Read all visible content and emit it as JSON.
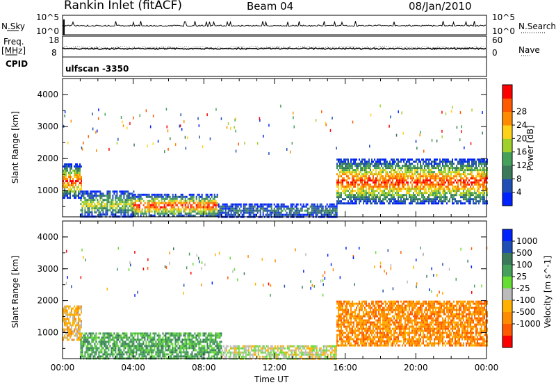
{
  "header": {
    "title": "Rankin Inlet (fitACF)",
    "beam": "Beam 04",
    "date": "08/Jan/2010"
  },
  "side_labels": {
    "nsky": "N.Sky",
    "freq_line1": "Freq.",
    "freq_line2": "[MHz]",
    "cpid": "CPID",
    "nsearch": "N.Search",
    "nave": "Nave"
  },
  "nsky_axis": {
    "top": "10^5",
    "bottom": "10^0"
  },
  "nsearch_axis": {
    "top": "10^5",
    "bottom": "10^0"
  },
  "freq_axis": {
    "top": "18",
    "bottom": "8"
  },
  "nave_axis": {
    "top": "60",
    "bottom": "0"
  },
  "cpid_text": "ulfscan  -3350",
  "colors": {
    "power_scale": [
      "#0022ff",
      "#1f4fb5",
      "#3a7a5a",
      "#45a05a",
      "#a0d02a",
      "#ffd21a",
      "#ff8c00",
      "#ff5a00",
      "#ff0000"
    ],
    "velocity_scale": [
      "#0022ff",
      "#1f4fb5",
      "#3a7a5a",
      "#45a05a",
      "#66dd33",
      "#bbbbbb",
      "#ffb000",
      "#ff8c00",
      "#ff5a00",
      "#ff0000"
    ]
  },
  "chart_data": [
    {
      "type": "heatmap",
      "name": "power",
      "ylabel": "Slant Range [km]",
      "xlabel": "Time UT",
      "ylim": [
        180,
        4500
      ],
      "yticks": [
        "1000",
        "2000",
        "3000",
        "4000"
      ],
      "xticks": [
        "00:00",
        "04:00",
        "08:00",
        "12:00",
        "16:00",
        "20:00",
        "00:00"
      ],
      "colorbar": {
        "label": "Power [dB]",
        "levels": [
          "4",
          "8",
          "12",
          "16",
          "20",
          "24",
          "28"
        ]
      },
      "scatter_regions": [
        {
          "start_hour": 0.0,
          "end_hour": 1.1,
          "range_low": 800,
          "range_high": 1850,
          "peak": "28"
        },
        {
          "start_hour": 1.0,
          "end_hour": 4.0,
          "range_low": 200,
          "range_high": 1000,
          "peak": "16"
        },
        {
          "start_hour": 4.0,
          "end_hour": 8.8,
          "range_low": 200,
          "range_high": 900,
          "peak": "28"
        },
        {
          "start_hour": 8.8,
          "end_hour": 15.5,
          "range_low": 200,
          "range_high": 600,
          "peak": "8"
        },
        {
          "start_hour": 15.5,
          "end_hour": 24.0,
          "range_low": 600,
          "range_high": 2000,
          "peak": "28"
        }
      ]
    },
    {
      "type": "heatmap",
      "name": "velocity",
      "ylabel": "Slant Range [km]",
      "xlabel": "Time UT",
      "ylim": [
        180,
        4500
      ],
      "yticks": [
        "1000",
        "2000",
        "3000",
        "4000"
      ],
      "xticks": [
        "00:00",
        "04:00",
        "08:00",
        "12:00",
        "16:00",
        "20:00",
        "00:00"
      ],
      "colorbar": {
        "label": "Velocity [m s^-1]",
        "levels": [
          "1000",
          "500",
          "100",
          "25",
          "-25",
          "-100",
          "-500",
          "-1000"
        ]
      },
      "scatter_regions": [
        {
          "start_hour": 0.0,
          "end_hour": 1.1,
          "range_low": 800,
          "range_high": 1850,
          "dominant": "-100"
        },
        {
          "start_hour": 1.0,
          "end_hour": 9.0,
          "range_low": 200,
          "range_high": 1000,
          "dominant": "100"
        },
        {
          "start_hour": 9.0,
          "end_hour": 15.5,
          "range_low": 200,
          "range_high": 600,
          "dominant": "-25"
        },
        {
          "start_hour": 15.5,
          "end_hour": 24.0,
          "range_low": 600,
          "range_high": 2000,
          "dominant": "-500"
        }
      ]
    }
  ]
}
